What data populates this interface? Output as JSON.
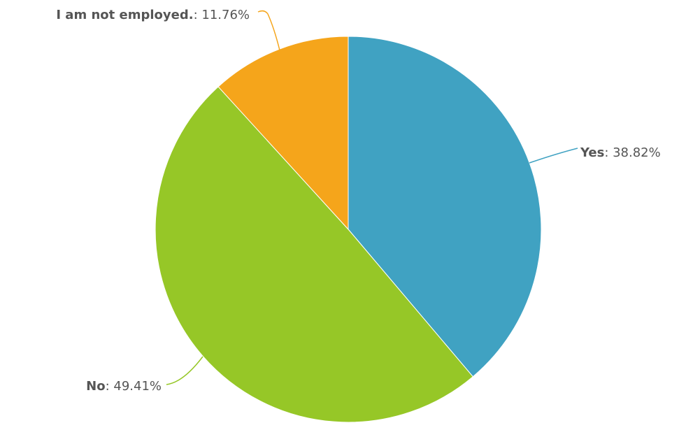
{
  "chart_data": {
    "type": "pie",
    "title": "",
    "slices": [
      {
        "label": "Yes",
        "value": 38.82,
        "display": "38.82%",
        "color": "#40a2c2"
      },
      {
        "label": "No",
        "value": 49.41,
        "display": "49.41%",
        "color": "#96c727"
      },
      {
        "label": "I am not employed.",
        "value": 11.76,
        "display": "11.76%",
        "color": "#f5a51b"
      }
    ],
    "start_angle": "12 o'clock",
    "direction": "clockwise",
    "legend": "none",
    "label_style": "callout-leader-lines"
  }
}
